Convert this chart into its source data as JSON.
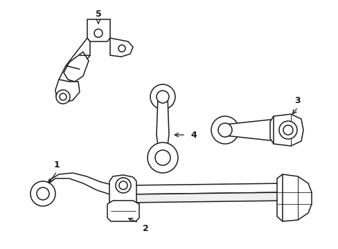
{
  "bg_color": "#ffffff",
  "line_color": "#1a1a1a",
  "lw": 1.1,
  "fig_w": 4.89,
  "fig_h": 3.6,
  "dpi": 100
}
